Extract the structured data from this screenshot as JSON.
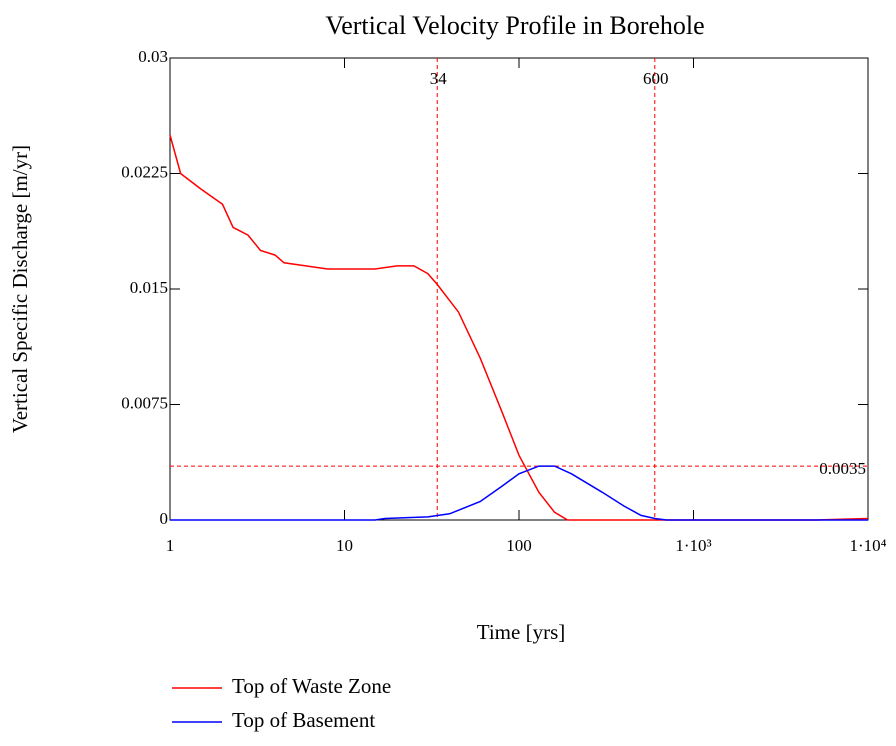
{
  "chart_data": {
    "type": "line",
    "title": "Vertical Velocity Profile in Borehole",
    "xlabel": "Time [yrs]",
    "ylabel": "Vertical Specific Discharge [m/yr]",
    "xscale": "log",
    "xlim": [
      1,
      10000
    ],
    "ylim": [
      0,
      0.03
    ],
    "xticks": [
      1,
      10,
      100,
      {
        "value": 1000,
        "label": "1·10³"
      },
      {
        "value": 10000,
        "label": "1·10⁴"
      }
    ],
    "yticks": [
      0,
      0.0075,
      0.015,
      0.0225,
      0.03
    ],
    "vlines": [
      34,
      600
    ],
    "hlines": [
      0.0035
    ],
    "marker_color": "#ff0000",
    "legend": "bottom-left",
    "series": [
      {
        "name": "Top of Waste Zone",
        "color": "#ff0000",
        "x": [
          1,
          1.15,
          1.5,
          2,
          2.3,
          2.8,
          3.3,
          4,
          4.5,
          6,
          8,
          15,
          20,
          25,
          30,
          34,
          45,
          60,
          80,
          100,
          130,
          160,
          190,
          250,
          5000,
          10000
        ],
        "values": [
          0.025,
          0.0225,
          0.0215,
          0.0205,
          0.019,
          0.0185,
          0.0175,
          0.0172,
          0.0167,
          0.0165,
          0.0163,
          0.0163,
          0.0165,
          0.0165,
          0.016,
          0.0153,
          0.0135,
          0.0105,
          0.007,
          0.0042,
          0.0018,
          0.0005,
          0,
          0,
          0,
          0.0001
        ]
      },
      {
        "name": "Top of Basement",
        "color": "#0000ff",
        "x": [
          1,
          15,
          17,
          30,
          40,
          60,
          80,
          100,
          130,
          160,
          200,
          300,
          400,
          500,
          600,
          700,
          10000
        ],
        "values": [
          0,
          0,
          0.0001,
          0.0002,
          0.0004,
          0.0012,
          0.0022,
          0.003,
          0.0035,
          0.0035,
          0.003,
          0.0018,
          0.0009,
          0.0003,
          0.0001,
          0,
          0
        ]
      }
    ]
  }
}
